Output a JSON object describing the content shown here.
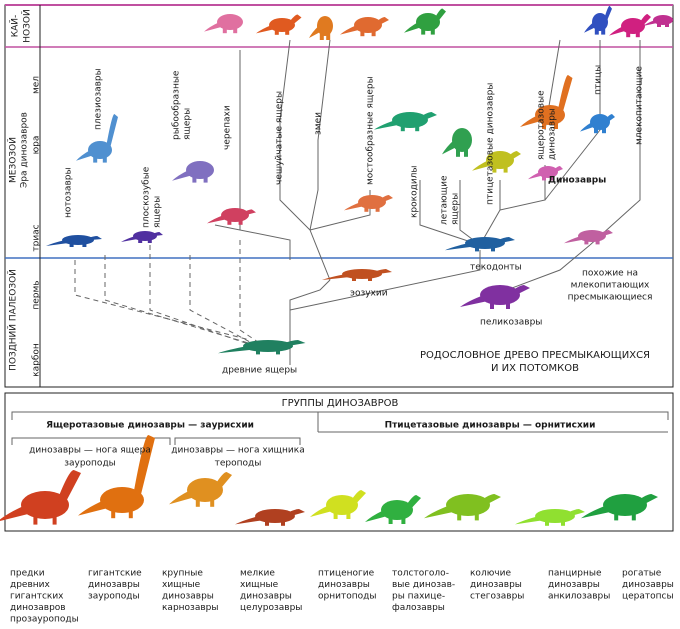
{
  "eras": {
    "cenozoic": [
      "КАЙ-",
      "НОЗОЙ"
    ],
    "mesozoic": "МЕЗОЗОЙ",
    "mesozoic_sub": "Эра динозавров",
    "paleozoic": "ПОЗДНИЙ ПАЛЕОЗОЙ"
  },
  "periods": [
    "мел",
    "юра",
    "триас",
    "пермь",
    "карбон"
  ],
  "tree": {
    "title": [
      "РОДОСЛОВНОЕ ДРЕВО ПРЕСМЫКАЮЩИХСЯ",
      "И ИХ ПОТОМКОВ"
    ],
    "labels": [
      {
        "lines": [
          "нотозавры"
        ]
      },
      {
        "lines": [
          "плезиозавры"
        ]
      },
      {
        "lines": [
          "плоскозубые",
          "ящеры"
        ]
      },
      {
        "lines": [
          "рыбообразные",
          "ящеры"
        ]
      },
      {
        "lines": [
          "черепахи"
        ]
      },
      {
        "lines": [
          "чешуйчатые ящеры"
        ]
      },
      {
        "lines": [
          "змеи"
        ]
      },
      {
        "lines": [
          "мостообразные ящеры"
        ]
      },
      {
        "lines": [
          "крокодилы"
        ]
      },
      {
        "lines": [
          "летающие",
          "ящеры"
        ]
      },
      {
        "lines": [
          "птицетазовые динозавры"
        ]
      },
      {
        "lines": [
          "ящеротазовые",
          "динозавры"
        ]
      },
      {
        "lines": [
          "птицы"
        ]
      },
      {
        "lines": [
          "млекопитающие"
        ]
      },
      {
        "lines": [
          "Динозавры"
        ]
      },
      {
        "lines": [
          "текодонты"
        ]
      },
      {
        "lines": [
          "похожие на",
          "млекопитающих",
          "пресмыкающиеся"
        ]
      },
      {
        "lines": [
          "эозухии"
        ]
      },
      {
        "lines": [
          "пеликозавры"
        ]
      },
      {
        "lines": [
          "древние ящеры"
        ]
      }
    ]
  },
  "groups": {
    "title": "ГРУППЫ ДИНОЗАВРОВ",
    "saurischia": "Ящеротазовые динозавры — заурисхии",
    "ornithischia": "Птицетазовые динозавры — орнитисхии",
    "sub": [
      {
        "lines": [
          "динозавры — нога ящера",
          "зауроподы"
        ]
      },
      {
        "lines": [
          "динозавры — нога хищника",
          "тероподы"
        ]
      }
    ],
    "captions": [
      [
        "предки",
        "древних",
        "гигантских",
        "динозавров",
        "прозауроподы"
      ],
      [
        "гигантские",
        "динозавры",
        "зауроподы"
      ],
      [
        "крупные",
        "хищные",
        "динозавры",
        "карнозавры"
      ],
      [
        "мелкие",
        "хищные",
        "динозавры",
        "целурозавры"
      ],
      [
        "птиценогие",
        "динозавры",
        "орнитоподы"
      ],
      [
        "толстоголо-",
        "вые динозав-",
        "ры пахице-",
        "фалозавры"
      ],
      [
        "колючие",
        "динозавры",
        "стегозавры"
      ],
      [
        "панцирные",
        "динозавры",
        "анкилозавры"
      ],
      [
        "рогатые",
        "динозавры",
        "цератопсы"
      ]
    ]
  }
}
